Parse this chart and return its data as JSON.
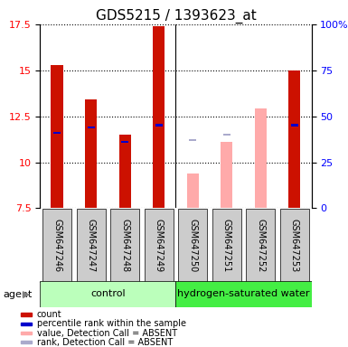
{
  "title": "GDS5215 / 1393623_at",
  "samples": [
    "GSM647246",
    "GSM647247",
    "GSM647248",
    "GSM647249",
    "GSM647250",
    "GSM647251",
    "GSM647252",
    "GSM647253"
  ],
  "red_values": [
    15.3,
    13.4,
    11.5,
    17.4,
    null,
    null,
    null,
    15.0
  ],
  "blue_values": [
    11.6,
    11.9,
    11.1,
    12.0,
    null,
    null,
    null,
    12.0
  ],
  "pink_values": [
    null,
    null,
    null,
    null,
    9.4,
    11.1,
    12.9,
    null
  ],
  "lightblue_values": [
    null,
    null,
    null,
    null,
    11.2,
    11.5,
    null,
    null
  ],
  "ymin": 7.5,
  "ymax": 17.5,
  "yticks": [
    7.5,
    10.0,
    12.5,
    15.0,
    17.5
  ],
  "y2tick_labels": [
    "0",
    "25",
    "50",
    "75",
    "100%"
  ],
  "bar_width": 0.35,
  "red_color": "#cc1100",
  "blue_color": "#0000cc",
  "pink_color": "#ffaaaa",
  "lightblue_color": "#aaaacc",
  "ctrl_color": "#bbffbb",
  "hw_color": "#44ee44",
  "sample_box_color": "#cccccc",
  "legend_items": [
    {
      "label": "count",
      "color": "#cc1100"
    },
    {
      "label": "percentile rank within the sample",
      "color": "#0000cc"
    },
    {
      "label": "value, Detection Call = ABSENT",
      "color": "#ffaaaa"
    },
    {
      "label": "rank, Detection Call = ABSENT",
      "color": "#aaaacc"
    }
  ],
  "agent_label": "agent",
  "control_label": "control",
  "hw_label": "hydrogen-saturated water",
  "figsize": [
    3.85,
    3.84
  ],
  "dpi": 100,
  "title_fontsize": 11,
  "ytick_fontsize": 8,
  "sample_fontsize": 7,
  "group_fontsize": 8,
  "legend_fontsize": 7
}
